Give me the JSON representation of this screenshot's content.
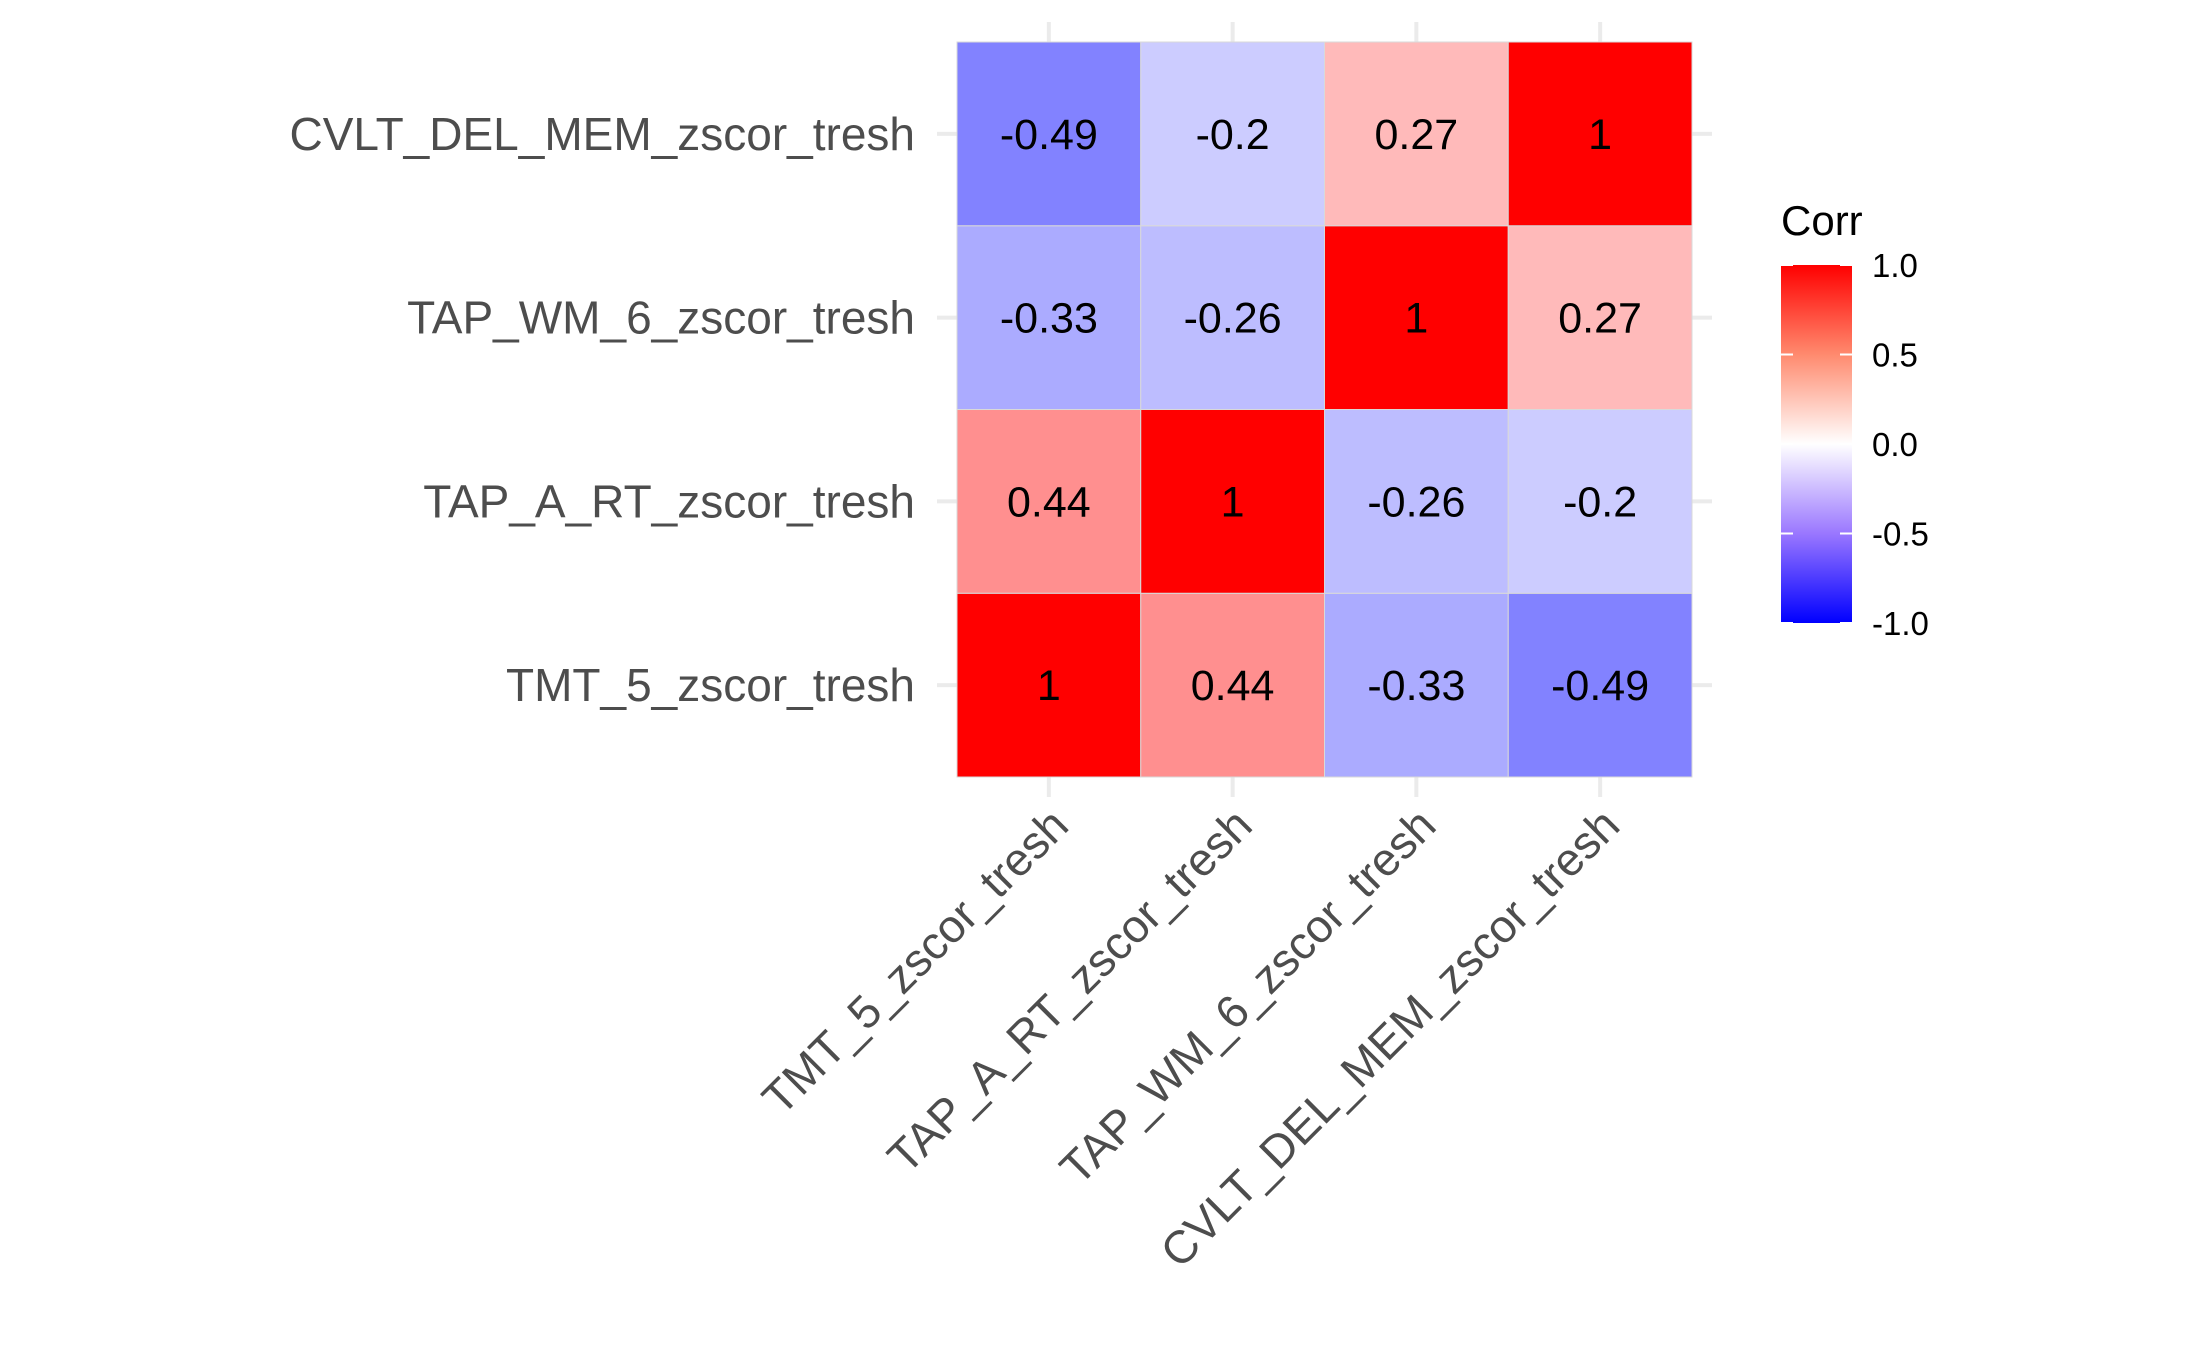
{
  "chart_data": {
    "type": "heatmap",
    "title": "",
    "xlabel": "",
    "ylabel": "",
    "x_categories": [
      "TMT_5_zscor_tresh",
      "TAP_A_RT_zscor_tresh",
      "TAP_WM_6_zscor_tresh",
      "CVLT_DEL_MEM_zscor_tresh"
    ],
    "y_categories": [
      "TMT_5_zscor_tresh",
      "TAP_A_RT_zscor_tresh",
      "TAP_WM_6_zscor_tresh",
      "CVLT_DEL_MEM_zscor_tresh"
    ],
    "values": [
      [
        1,
        0.44,
        -0.33,
        -0.49
      ],
      [
        0.44,
        1,
        -0.26,
        -0.2
      ],
      [
        -0.33,
        -0.26,
        1,
        0.27
      ],
      [
        -0.49,
        -0.2,
        0.27,
        1
      ]
    ],
    "value_labels": [
      [
        "1",
        "0.44",
        "-0.33",
        "-0.49"
      ],
      [
        "0.44",
        "1",
        "-0.26",
        "-0.2"
      ],
      [
        "-0.33",
        "-0.26",
        "1",
        "0.27"
      ],
      [
        "-0.49",
        "-0.2",
        "0.27",
        "1"
      ]
    ],
    "legend": {
      "title": "Corr",
      "placement": "right",
      "range": [
        -1,
        1
      ],
      "ticks": [
        1.0,
        0.5,
        0.0,
        -0.5,
        -1.0
      ],
      "tick_labels": [
        "1.0",
        "0.5",
        "0.0",
        "-0.5",
        "-1.0"
      ]
    },
    "colors": {
      "low": "#0000ff",
      "mid": "#ffffff",
      "high": "#ff0000"
    },
    "grid": true
  }
}
